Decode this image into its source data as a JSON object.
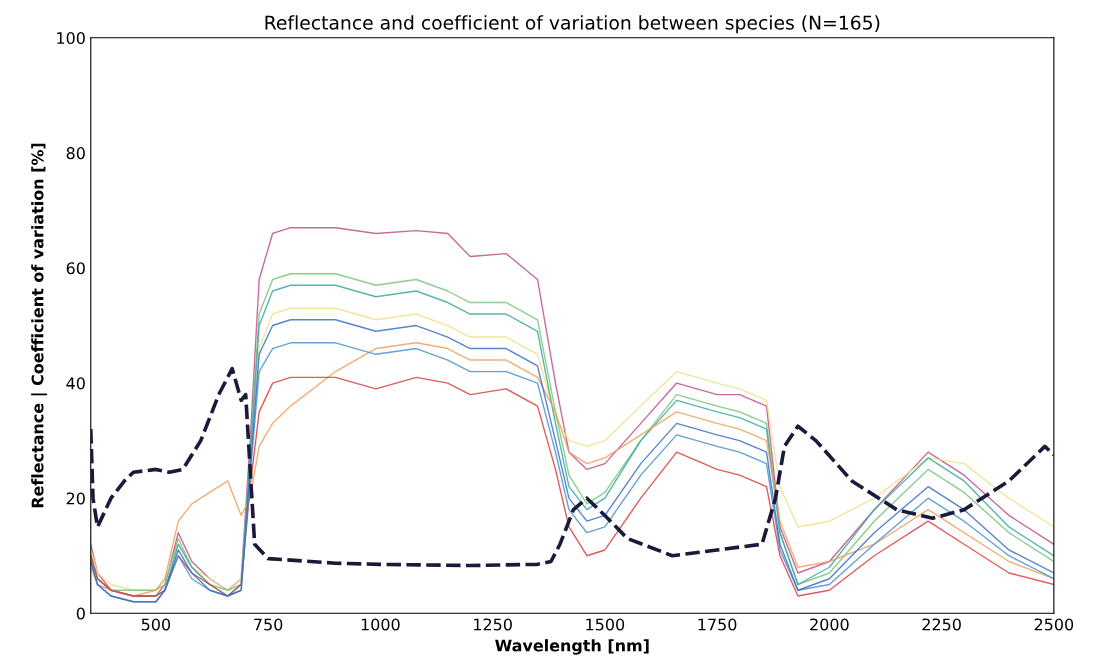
{
  "chart_data": {
    "type": "line",
    "title": "Reflectance and coefficient of variation between species (N=165)",
    "xlabel": "Wavelength [nm]",
    "ylabel": "Reflectance | Coefficient of variation [%]",
    "xlim": [
      355,
      2500
    ],
    "xticks": [
      500,
      750,
      1000,
      1250,
      1500,
      1750,
      2000,
      2250,
      2500
    ],
    "ylim": [
      0,
      100
    ],
    "yticks": [
      0,
      20,
      40,
      60,
      80,
      100
    ],
    "grid": false,
    "legend": false,
    "marker": "none",
    "x": [
      355,
      370,
      400,
      450,
      500,
      520,
      550,
      580,
      620,
      660,
      690,
      710,
      730,
      760,
      800,
      900,
      990,
      1080,
      1150,
      1200,
      1280,
      1350,
      1390,
      1420,
      1460,
      1500,
      1580,
      1660,
      1750,
      1800,
      1860,
      1890,
      1930,
      2000,
      2100,
      2220,
      2300,
      2400,
      2500
    ],
    "series": [
      {
        "color": "#c0508a",
        "line_style": "solid",
        "values": [
          12,
          7,
          4,
          3,
          3,
          5,
          14,
          9,
          6,
          4,
          6,
          30,
          58,
          66,
          67,
          67,
          66,
          66.5,
          66,
          62,
          62.5,
          58,
          40,
          28,
          25,
          26,
          33,
          40,
          38,
          38,
          36,
          15,
          7,
          9,
          18,
          28,
          24,
          17,
          12
        ]
      },
      {
        "color": "#f0e08a",
        "line_style": "solid",
        "values": [
          11,
          7,
          5,
          4,
          4,
          6,
          12,
          8,
          6,
          4,
          6,
          26,
          46,
          52,
          53,
          53,
          51,
          52,
          50,
          48,
          48,
          45,
          34,
          30,
          29,
          30,
          36,
          42,
          40,
          39,
          37,
          22,
          15,
          16,
          20,
          27,
          26,
          20,
          15
        ]
      },
      {
        "color": "#7ac47a",
        "line_style": "solid",
        "values": [
          10,
          6,
          4,
          4,
          4,
          5,
          13,
          8,
          5,
          4,
          5,
          28,
          52,
          58,
          59,
          59,
          57,
          58,
          56,
          54,
          54,
          51,
          35,
          24,
          19,
          21,
          30,
          38,
          36,
          35,
          33,
          14,
          5,
          7,
          16,
          25,
          21,
          14,
          9
        ]
      },
      {
        "color": "#3aa8a0",
        "line_style": "solid",
        "values": [
          10,
          6,
          4,
          3,
          3,
          4,
          12,
          8,
          5,
          3,
          5,
          27,
          50,
          56,
          57,
          57,
          55,
          56,
          54,
          52,
          52,
          49,
          33,
          22,
          18,
          20,
          30,
          37,
          35,
          34,
          32,
          14,
          5,
          8,
          18,
          27,
          23,
          15,
          10
        ]
      },
      {
        "color": "#f0a060",
        "line_style": "solid",
        "values": [
          8,
          5,
          4,
          3,
          4,
          6,
          16,
          19,
          21,
          23,
          17,
          20,
          29,
          33,
          36,
          42,
          46,
          47,
          46,
          44,
          44,
          41,
          35,
          28,
          26,
          27,
          31,
          35,
          33,
          32,
          30,
          16,
          8,
          9,
          12,
          18,
          14,
          9,
          6
        ]
      },
      {
        "color": "#d84040",
        "line_style": "solid",
        "values": [
          10,
          6,
          4,
          3,
          3,
          4,
          10,
          7,
          5,
          3,
          5,
          22,
          35,
          40,
          41,
          41,
          39,
          41,
          40,
          38,
          39,
          36,
          25,
          15,
          10,
          11,
          20,
          28,
          25,
          24,
          22,
          10,
          3,
          4,
          10,
          16,
          12,
          7,
          5
        ]
      },
      {
        "color": "#4a90d0",
        "line_style": "solid",
        "values": [
          9,
          5,
          3,
          2,
          2,
          4,
          10,
          6,
          4,
          3,
          4,
          24,
          42,
          46,
          47,
          47,
          45,
          46,
          44,
          42,
          42,
          40,
          28,
          18,
          14,
          15,
          24,
          31,
          29,
          28,
          26,
          11,
          4,
          5,
          12,
          20,
          16,
          10,
          6
        ]
      },
      {
        "color": "#3a6fc4",
        "line_style": "solid",
        "values": [
          9,
          5,
          3,
          2,
          2,
          4,
          11,
          7,
          4,
          3,
          4,
          25,
          45,
          50,
          51,
          51,
          49,
          50,
          48,
          46,
          46,
          43,
          30,
          20,
          16,
          17,
          26,
          33,
          31,
          30,
          28,
          12,
          4,
          6,
          14,
          22,
          18,
          11,
          7
        ]
      },
      {
        "color": "#1a1a3a",
        "line_style": "dashed",
        "x": [
          355,
          360,
          370,
          400,
          430,
          450,
          500,
          530,
          560,
          600,
          640,
          670,
          690,
          700,
          710,
          720,
          750,
          900,
          1000,
          1200,
          1350,
          1380,
          1400,
          1430,
          1460,
          1500,
          1550,
          1650,
          1750,
          1850,
          1880,
          1900,
          1930,
          1970,
          2050,
          2150,
          2230,
          2300,
          2400,
          2480,
          2500
        ],
        "values": [
          32,
          20,
          15,
          20,
          23,
          24.5,
          25,
          24.5,
          25,
          30,
          38,
          42.5,
          37,
          38,
          25,
          12,
          9.5,
          8.7,
          8.5,
          8.3,
          8.5,
          9,
          12,
          18,
          20,
          17,
          13,
          10,
          11,
          12,
          20,
          29,
          32.5,
          30,
          23,
          18,
          16.5,
          18,
          23,
          29,
          27.5
        ]
      }
    ]
  }
}
